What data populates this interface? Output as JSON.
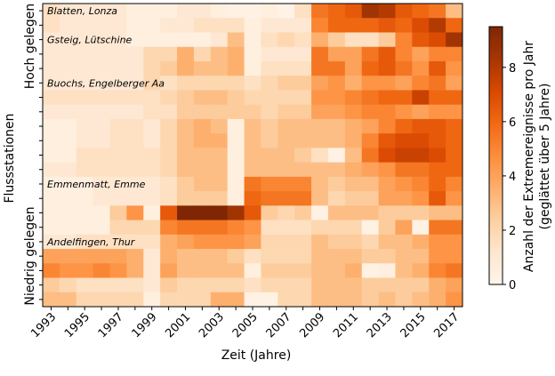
{
  "chart_data": {
    "type": "heatmap",
    "xlabel": "Zeit (Jahre)",
    "ylabel": "Flussstationen",
    "x": [
      1993,
      1994,
      1995,
      1996,
      1997,
      1998,
      1999,
      2000,
      2001,
      2002,
      2003,
      2004,
      2005,
      2006,
      2007,
      2008,
      2009,
      2010,
      2011,
      2012,
      2013,
      2014,
      2015,
      2016,
      2017
    ],
    "x_tick_labels": [
      "1993",
      "1995",
      "1997",
      "1999",
      "2001",
      "2003",
      "2005",
      "2007",
      "2009",
      "2011",
      "2013",
      "2015",
      "2017"
    ],
    "y_group_labels": [
      "Hoch gelegen",
      "Niedrig gelegen"
    ],
    "station_labels": [
      {
        "row": 0,
        "text": "Blatten, Lonza"
      },
      {
        "row": 2,
        "text": "Gsteig, Lütschine"
      },
      {
        "row": 5,
        "text": "Buochs, Engelberger Aa"
      },
      {
        "row": 12,
        "text": "Emmenmatt, Emme"
      },
      {
        "row": 16,
        "text": "Andelfingen, Thur"
      }
    ],
    "colorbar": {
      "label_line1": "Anzahl der Extremereignisse pro Jahr",
      "label_line2": "(geglättet über 5 Jahre)",
      "min": 0,
      "max": 9.5,
      "ticks": [
        "0",
        "2",
        "4",
        "6",
        "8"
      ],
      "colormap": "Oranges",
      "color_stops": [
        "#fff5eb",
        "#fee6ce",
        "#fdd0a2",
        "#fdae6b",
        "#fd8d3c",
        "#f16913",
        "#d94801",
        "#a63603",
        "#7f2704"
      ]
    },
    "z": [
      [
        1.5,
        1.0,
        1.0,
        1.0,
        1.0,
        0.5,
        0.5,
        0.5,
        1.0,
        1.0,
        0.5,
        0.3,
        0.3,
        0.5,
        0.2,
        1.5,
        5.5,
        6.0,
        6.5,
        8.5,
        8.0,
        6.5,
        6.0,
        5.5,
        3.0
      ],
      [
        1.5,
        1.0,
        1.0,
        1.0,
        1.0,
        0.5,
        0.5,
        1.0,
        1.0,
        1.5,
        1.5,
        1.5,
        0.5,
        1.0,
        1.0,
        1.0,
        5.0,
        6.0,
        6.0,
        6.0,
        6.5,
        6.0,
        7.0,
        8.0,
        6.0
      ],
      [
        1.0,
        1.0,
        1.0,
        1.0,
        1.0,
        0.5,
        0.5,
        0.5,
        0.5,
        0.5,
        1.0,
        3.0,
        0.5,
        1.5,
        2.0,
        1.5,
        3.5,
        2.5,
        1.5,
        1.5,
        2.5,
        5.0,
        6.5,
        7.0,
        8.5
      ],
      [
        1.0,
        1.0,
        1.0,
        1.0,
        1.0,
        1.0,
        2.0,
        2.0,
        3.5,
        2.0,
        3.0,
        3.5,
        0.5,
        1.0,
        1.0,
        1.0,
        5.5,
        4.0,
        4.0,
        5.5,
        6.5,
        5.0,
        4.0,
        5.0,
        5.0
      ],
      [
        1.0,
        1.0,
        1.0,
        1.0,
        1.0,
        1.0,
        2.0,
        2.5,
        3.5,
        3.0,
        3.0,
        3.5,
        0.5,
        1.5,
        1.5,
        1.5,
        5.5,
        5.5,
        4.0,
        6.0,
        6.5,
        5.5,
        4.5,
        6.5,
        4.5
      ],
      [
        1.0,
        1.0,
        1.0,
        1.0,
        1.0,
        1.0,
        2.0,
        1.5,
        2.0,
        2.0,
        2.0,
        2.0,
        1.5,
        2.0,
        2.5,
        2.5,
        4.0,
        4.5,
        3.5,
        4.5,
        4.5,
        4.0,
        5.0,
        5.5,
        4.0
      ],
      [
        1.5,
        1.5,
        1.5,
        1.5,
        1.5,
        1.5,
        1.5,
        2.0,
        2.5,
        3.0,
        3.0,
        2.5,
        2.0,
        2.0,
        2.0,
        2.0,
        4.5,
        4.5,
        5.0,
        5.5,
        6.0,
        6.0,
        7.5,
        6.0,
        6.0
      ],
      [
        1.0,
        1.0,
        1.0,
        1.0,
        1.0,
        1.0,
        1.5,
        1.5,
        2.5,
        2.5,
        2.5,
        2.5,
        2.5,
        2.0,
        2.5,
        2.5,
        4.0,
        4.0,
        4.5,
        5.0,
        5.0,
        4.5,
        4.0,
        4.5,
        4.5
      ],
      [
        0.5,
        0.5,
        1.0,
        1.0,
        1.5,
        1.5,
        1.0,
        2.0,
        3.0,
        3.5,
        3.0,
        0.5,
        3.0,
        2.5,
        3.0,
        3.0,
        3.0,
        3.0,
        3.5,
        4.0,
        5.0,
        6.0,
        6.5,
        6.5,
        6.0
      ],
      [
        0.5,
        0.5,
        1.0,
        1.0,
        1.5,
        1.5,
        1.0,
        2.0,
        3.0,
        3.5,
        3.5,
        0.5,
        3.0,
        2.5,
        3.0,
        3.0,
        3.0,
        3.0,
        3.5,
        5.0,
        6.5,
        7.0,
        7.0,
        6.5,
        6.0
      ],
      [
        0.5,
        0.5,
        1.5,
        1.5,
        1.5,
        1.5,
        1.5,
        2.0,
        3.0,
        3.0,
        3.0,
        0.5,
        3.0,
        3.0,
        3.0,
        2.5,
        1.5,
        0.3,
        3.0,
        5.5,
        7.0,
        7.5,
        7.5,
        7.0,
        6.0
      ],
      [
        1.0,
        1.0,
        1.5,
        1.5,
        1.5,
        1.5,
        1.5,
        2.0,
        3.0,
        3.0,
        3.0,
        0.5,
        3.0,
        3.0,
        3.0,
        3.0,
        3.0,
        3.0,
        3.5,
        4.0,
        4.5,
        5.5,
        5.5,
        6.0,
        6.0
      ],
      [
        0.5,
        0.5,
        0.5,
        1.0,
        1.0,
        1.0,
        1.0,
        1.5,
        2.5,
        3.0,
        3.0,
        0.5,
        5.5,
        5.0,
        5.0,
        5.0,
        3.0,
        2.5,
        3.0,
        3.0,
        4.0,
        4.5,
        5.0,
        6.0,
        5.0
      ],
      [
        0.5,
        0.5,
        0.5,
        1.0,
        1.0,
        1.0,
        1.0,
        1.5,
        2.5,
        2.5,
        2.5,
        0.5,
        6.0,
        5.5,
        5.5,
        5.5,
        3.0,
        2.0,
        2.5,
        2.5,
        4.0,
        4.0,
        4.5,
        6.5,
        4.5
      ],
      [
        0.5,
        0.5,
        0.5,
        0.5,
        2.5,
        4.5,
        0.5,
        6.5,
        9.5,
        9.5,
        9.5,
        8.5,
        6.5,
        2.5,
        2.0,
        2.5,
        0.3,
        3.0,
        3.0,
        3.0,
        2.5,
        2.5,
        2.5,
        3.0,
        3.0
      ],
      [
        0.5,
        0.5,
        0.5,
        0.5,
        2.0,
        2.0,
        2.0,
        5.0,
        5.5,
        5.5,
        5.5,
        5.0,
        4.5,
        1.5,
        1.5,
        1.5,
        2.0,
        2.0,
        2.0,
        0.3,
        2.5,
        4.0,
        0.3,
        5.5,
        5.5
      ],
      [
        1.0,
        1.0,
        1.5,
        1.5,
        1.5,
        1.5,
        1.5,
        3.5,
        4.0,
        4.5,
        4.5,
        4.5,
        4.0,
        2.0,
        2.0,
        2.0,
        3.0,
        2.5,
        2.5,
        2.0,
        3.0,
        3.0,
        3.5,
        4.5,
        4.5
      ],
      [
        4.0,
        4.0,
        4.0,
        4.0,
        4.0,
        3.5,
        1.0,
        3.5,
        3.0,
        3.0,
        3.0,
        2.5,
        1.5,
        2.0,
        2.0,
        2.0,
        3.0,
        3.0,
        3.0,
        2.5,
        2.5,
        3.0,
        3.0,
        4.5,
        4.5
      ],
      [
        5.0,
        4.5,
        4.5,
        5.0,
        4.5,
        3.5,
        1.0,
        4.0,
        3.0,
        3.0,
        3.0,
        3.0,
        0.5,
        2.5,
        2.5,
        2.5,
        3.0,
        3.0,
        3.5,
        0.3,
        0.5,
        3.0,
        3.5,
        5.0,
        5.5
      ],
      [
        2.5,
        2.0,
        1.5,
        1.5,
        1.5,
        1.5,
        1.0,
        2.5,
        2.0,
        2.0,
        2.0,
        2.0,
        1.5,
        2.0,
        2.0,
        2.0,
        3.0,
        3.0,
        3.0,
        2.5,
        2.5,
        2.5,
        2.5,
        3.5,
        4.0
      ],
      [
        3.0,
        3.0,
        2.0,
        2.0,
        2.0,
        2.0,
        0.5,
        2.0,
        2.0,
        2.0,
        3.5,
        3.5,
        0.3,
        0.3,
        2.0,
        2.0,
        3.0,
        3.0,
        3.0,
        2.5,
        3.0,
        2.5,
        3.0,
        3.5,
        4.5
      ]
    ]
  }
}
